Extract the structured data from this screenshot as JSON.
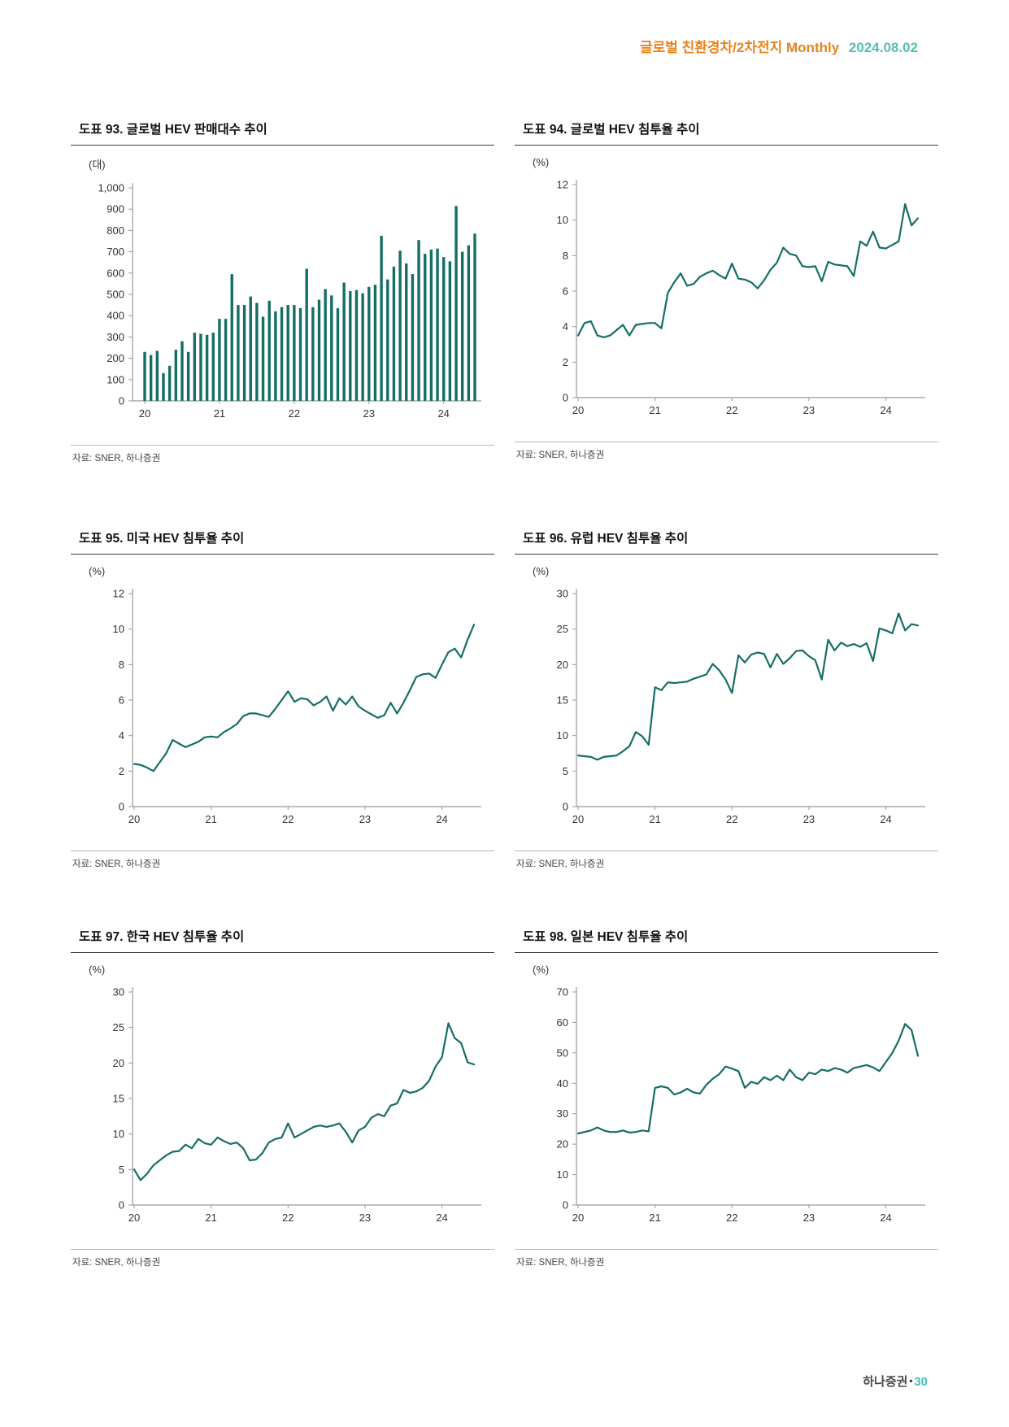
{
  "header": {
    "title": "글로벌 친환경차/2차전지 Monthly",
    "date": "2024.08.02"
  },
  "footer": {
    "brand": "하나증권",
    "separator": "•",
    "page": "30"
  },
  "colors": {
    "accent": "#156e66",
    "header_orange": "#e8831d",
    "header_teal": "#56bdb4",
    "axis": "#999999",
    "tick_text": "#333333"
  },
  "chart_data": [
    {
      "id": "93",
      "type": "bar",
      "title": "도표 93. 글로벌 HEV 판매대수 추이",
      "unit": "(대)",
      "source": "자료: SNER, 하나증권",
      "x_tick_labels": [
        "20",
        "21",
        "22",
        "23",
        "24"
      ],
      "period": "monthly, 2020-01 ~ 2024-06 (estimated from axis)",
      "y_min": 0,
      "y_max": 1000,
      "y_step": 100,
      "y_tick_labels": [
        "0",
        "100",
        "200",
        "300",
        "400",
        "500",
        "600",
        "700",
        "800",
        "900",
        "1,000"
      ],
      "values": [
        230,
        215,
        235,
        130,
        165,
        240,
        280,
        230,
        320,
        315,
        310,
        320,
        385,
        385,
        595,
        450,
        450,
        490,
        460,
        395,
        470,
        420,
        440,
        450,
        450,
        435,
        620,
        440,
        475,
        525,
        495,
        435,
        555,
        515,
        520,
        505,
        535,
        545,
        775,
        570,
        630,
        705,
        645,
        595,
        755,
        690,
        710,
        715,
        675,
        655,
        915,
        700,
        730,
        785
      ]
    },
    {
      "id": "94",
      "type": "line",
      "title": "도표 94. 글로벌 HEV 침투율 추이",
      "unit": "(%)",
      "source": "자료: SNER, 하나증권",
      "x_tick_labels": [
        "20",
        "21",
        "22",
        "23",
        "24"
      ],
      "period": "monthly, 2020-01 ~ 2024-06 (estimated from axis)",
      "y_min": 0,
      "y_max": 12,
      "y_step": 2,
      "y_tick_labels": [
        "0",
        "2",
        "4",
        "6",
        "8",
        "10",
        "12"
      ],
      "values": [
        3.5,
        4.2,
        4.3,
        3.5,
        3.4,
        3.5,
        3.8,
        4.1,
        3.5,
        4.1,
        4.15,
        4.2,
        4.2,
        3.9,
        5.9,
        6.5,
        7.0,
        6.3,
        6.4,
        6.8,
        7.0,
        7.15,
        6.9,
        6.7,
        7.55,
        6.7,
        6.65,
        6.5,
        6.15,
        6.6,
        7.2,
        7.6,
        8.45,
        8.1,
        8.0,
        7.4,
        7.35,
        7.4,
        6.55,
        7.65,
        7.5,
        7.45,
        7.4,
        6.85,
        8.8,
        8.55,
        9.35,
        8.45,
        8.4,
        8.6,
        8.8,
        10.9,
        9.7,
        10.1
      ]
    },
    {
      "id": "95",
      "type": "line",
      "title": "도표 95. 미국 HEV 침투율 추이",
      "unit": "(%)",
      "source": "자료: SNER, 하나증권",
      "x_tick_labels": [
        "20",
        "21",
        "22",
        "23",
        "24"
      ],
      "period": "monthly, 2020-01 ~ 2024-06 (estimated from axis)",
      "y_min": 0,
      "y_max": 12,
      "y_step": 2,
      "y_tick_labels": [
        "0",
        "2",
        "4",
        "6",
        "8",
        "10",
        "12"
      ],
      "values": [
        2.4,
        2.35,
        2.2,
        2.0,
        2.5,
        3.0,
        3.75,
        3.55,
        3.35,
        3.5,
        3.65,
        3.9,
        3.95,
        3.9,
        4.2,
        4.4,
        4.65,
        5.1,
        5.25,
        5.25,
        5.15,
        5.05,
        5.5,
        6.0,
        6.5,
        5.9,
        6.1,
        6.05,
        5.7,
        5.9,
        6.2,
        5.4,
        6.1,
        5.75,
        6.2,
        5.65,
        5.4,
        5.2,
        5.0,
        5.15,
        5.85,
        5.25,
        5.85,
        6.55,
        7.3,
        7.45,
        7.5,
        7.25,
        8.0,
        8.7,
        8.9,
        8.4,
        9.4,
        10.25
      ]
    },
    {
      "id": "96",
      "type": "line",
      "title": "도표 96. 유럽 HEV 침투율 추이",
      "unit": "(%)",
      "source": "자료: SNER, 하나증권",
      "x_tick_labels": [
        "20",
        "21",
        "22",
        "23",
        "24"
      ],
      "period": "monthly, 2020-01 ~ 2024-06 (estimated from axis)",
      "y_min": 0,
      "y_max": 30,
      "y_step": 5,
      "y_tick_labels": [
        "0",
        "5",
        "10",
        "15",
        "20",
        "25",
        "30"
      ],
      "values": [
        7.2,
        7.1,
        7.0,
        6.6,
        7.0,
        7.1,
        7.2,
        7.8,
        8.5,
        10.5,
        9.9,
        8.7,
        16.8,
        16.4,
        17.5,
        17.4,
        17.5,
        17.6,
        18.0,
        18.3,
        18.6,
        20.1,
        19.2,
        17.9,
        16.0,
        21.3,
        20.3,
        21.4,
        21.7,
        21.5,
        19.6,
        21.5,
        20.1,
        20.9,
        21.9,
        22.0,
        21.2,
        20.6,
        17.9,
        23.5,
        22.0,
        23.1,
        22.6,
        22.9,
        22.5,
        23.0,
        20.5,
        25.1,
        24.8,
        24.4,
        27.2,
        24.8,
        25.7,
        25.5
      ]
    },
    {
      "id": "97",
      "type": "line",
      "title": "도표 97. 한국 HEV 침투율 추이",
      "unit": "(%)",
      "source": "자료: SNER, 하나증권",
      "x_tick_labels": [
        "20",
        "21",
        "22",
        "23",
        "24"
      ],
      "period": "monthly, 2020-01 ~ 2024-06 (estimated from axis)",
      "y_min": 0,
      "y_max": 30,
      "y_step": 5,
      "y_tick_labels": [
        "0",
        "5",
        "10",
        "15",
        "20",
        "25",
        "30"
      ],
      "values": [
        5.0,
        3.5,
        4.4,
        5.6,
        6.3,
        7.0,
        7.5,
        7.6,
        8.5,
        8.0,
        9.3,
        8.7,
        8.5,
        9.5,
        9.0,
        8.6,
        8.8,
        8.0,
        6.3,
        6.4,
        7.3,
        8.8,
        9.3,
        9.5,
        11.5,
        9.5,
        10.0,
        10.5,
        11.0,
        11.2,
        11.0,
        11.2,
        11.5,
        10.3,
        8.8,
        10.5,
        11.0,
        12.3,
        12.8,
        12.5,
        14.0,
        14.3,
        16.2,
        15.8,
        16.0,
        16.5,
        17.5,
        19.5,
        20.8,
        25.6,
        23.5,
        22.8,
        20.1,
        19.8
      ]
    },
    {
      "id": "98",
      "type": "line",
      "title": "도표 98. 일본 HEV 침투율 추이",
      "unit": "(%)",
      "source": "자료: SNER, 하나증권",
      "x_tick_labels": [
        "20",
        "21",
        "22",
        "23",
        "24"
      ],
      "period": "monthly, 2020-01 ~ 2024-06 (estimated from axis)",
      "y_min": 0,
      "y_max": 70,
      "y_step": 10,
      "y_tick_labels": [
        "0",
        "10",
        "20",
        "30",
        "40",
        "50",
        "60",
        "70"
      ],
      "values": [
        23.5,
        24.0,
        24.5,
        25.5,
        24.5,
        24.0,
        24.0,
        24.5,
        23.8,
        24.0,
        24.5,
        24.2,
        38.5,
        39.0,
        38.5,
        36.3,
        37.0,
        38.2,
        37.0,
        36.6,
        39.5,
        41.5,
        43.0,
        45.5,
        44.8,
        44.0,
        38.5,
        40.5,
        39.8,
        42.0,
        41.0,
        42.5,
        41.0,
        44.5,
        42.0,
        41.0,
        43.5,
        43.0,
        44.5,
        44.0,
        45.0,
        44.5,
        43.5,
        45.0,
        45.5,
        46.0,
        45.2,
        44.0,
        47.0,
        50.0,
        54.0,
        59.5,
        57.5,
        49.0
      ]
    }
  ]
}
